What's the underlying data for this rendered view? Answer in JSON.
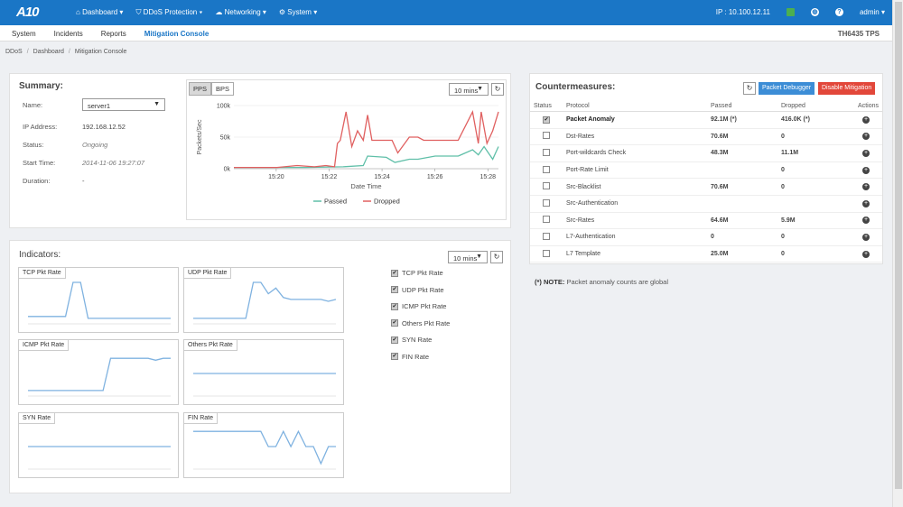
{
  "topbar": {
    "logo": "A10",
    "nav": [
      "Dashboard ▾",
      "DDoS Protection ▾",
      "Networking ▾",
      "System ▾"
    ],
    "nav_icons": [
      "home-icon",
      "shield-icon",
      "cloud-icon",
      "gear-icon"
    ],
    "ip": "IP : 10.100.12.11",
    "user": "admin ▾"
  },
  "subnav": {
    "items": [
      "System",
      "Incidents",
      "Reports",
      "Mitigation Console"
    ],
    "active_index": 3,
    "model": "TH6435 TPS"
  },
  "breadcrumb": [
    "DDoS",
    "Dashboard",
    "Mitigation Console"
  ],
  "summary": {
    "title": "Summary:",
    "name_label": "Name:",
    "name_value": "server1",
    "ip_label": "IP Address:",
    "ip_value": "192.168.12.52",
    "status_label": "Status:",
    "status_value": "Ongoing",
    "start_label": "Start Time:",
    "start_value": "2014-11-06 19:27:07",
    "duration_label": "Duration:",
    "duration_value": "-",
    "toggle": [
      "PPS",
      "BPS"
    ],
    "range": "10 mins"
  },
  "chart_data": {
    "type": "line",
    "ylabel": "Packets/Sec",
    "xlabel": "Date Time",
    "x_ticks": [
      "15:20",
      "15:22",
      "15:24",
      "15:26",
      "15:28"
    ],
    "y_ticks": [
      "0k",
      "50k",
      "100k"
    ],
    "ylim": [
      0,
      100
    ],
    "xlim": [
      0,
      9.2
    ],
    "legend_placement": "bottom",
    "series": [
      {
        "name": "Passed",
        "color": "#5fbfa8",
        "x": [
          0,
          2.5,
          3.8,
          4.5,
          4.65,
          5.3,
          5.6,
          6.1,
          6.4,
          7.0,
          7.2,
          7.8,
          8.3,
          8.5,
          8.7,
          9.0,
          9.2
        ],
        "values": [
          2,
          2,
          3,
          5,
          20,
          18,
          10,
          15,
          15,
          20,
          20,
          20,
          30,
          22,
          35,
          15,
          35
        ]
      },
      {
        "name": "Dropped",
        "color": "#e06060",
        "x": [
          0,
          1.5,
          2.2,
          2.8,
          3.2,
          3.5,
          3.6,
          3.7,
          3.9,
          4.1,
          4.3,
          4.5,
          4.65,
          4.8,
          5.0,
          5.5,
          5.7,
          6.1,
          6.4,
          6.6,
          7.0,
          7.8,
          8.3,
          8.5,
          8.6,
          8.8,
          9.0,
          9.2
        ],
        "values": [
          2,
          2,
          5,
          3,
          5,
          3,
          40,
          45,
          90,
          35,
          60,
          45,
          85,
          45,
          45,
          45,
          25,
          50,
          50,
          45,
          45,
          45,
          90,
          40,
          90,
          40,
          60,
          90
        ]
      }
    ]
  },
  "indicators": {
    "title": "Indicators:",
    "range": "10 mins",
    "charts": [
      {
        "label": "TCP Pkt Rate",
        "values": [
          0.1,
          0.1,
          0.1,
          0.1,
          0.1,
          0.1,
          1.0,
          1.0,
          0.05,
          0.05,
          0.05,
          0.05,
          0.05,
          0.05,
          0.05,
          0.05,
          0.05,
          0.05,
          0.05,
          0.05
        ]
      },
      {
        "label": "UDP Pkt Rate",
        "values": [
          0.05,
          0.05,
          0.05,
          0.05,
          0.05,
          0.05,
          0.05,
          0.05,
          1.0,
          1.0,
          0.7,
          0.85,
          0.6,
          0.55,
          0.55,
          0.55,
          0.55,
          0.55,
          0.5,
          0.55
        ]
      },
      {
        "label": "ICMP Pkt Rate",
        "values": [
          0.05,
          0.05,
          0.05,
          0.05,
          0.05,
          0.05,
          0.05,
          0.05,
          0.05,
          0.05,
          0.05,
          0.9,
          0.9,
          0.9,
          0.9,
          0.9,
          0.9,
          0.85,
          0.9,
          0.9
        ]
      },
      {
        "label": "Others Pkt Rate",
        "values": [
          0.5,
          0.5,
          0.5,
          0.5,
          0.5,
          0.5,
          0.5,
          0.5,
          0.5,
          0.5,
          0.5,
          0.5,
          0.5,
          0.5,
          0.5,
          0.5,
          0.5,
          0.5,
          0.5,
          0.5
        ]
      },
      {
        "label": "SYN Rate",
        "values": [
          0.5,
          0.5,
          0.5,
          0.5,
          0.5,
          0.5,
          0.5,
          0.5,
          0.5,
          0.5,
          0.5,
          0.5,
          0.5,
          0.5,
          0.5,
          0.5,
          0.5,
          0.5,
          0.5,
          0.5
        ]
      },
      {
        "label": "FIN Rate",
        "values": [
          0.9,
          0.9,
          0.9,
          0.9,
          0.9,
          0.9,
          0.9,
          0.9,
          0.9,
          0.9,
          0.5,
          0.5,
          0.9,
          0.5,
          0.9,
          0.5,
          0.5,
          0.05,
          0.5,
          0.5
        ]
      }
    ],
    "checks": [
      "TCP Pkt Rate",
      "UDP Pkt Rate",
      "ICMP Pkt Rate",
      "Others Pkt Rate",
      "SYN Rate",
      "FIN Rate"
    ]
  },
  "countermeasures": {
    "title": "Countermeasures:",
    "debugger_label": "Packet Debugger",
    "disable_label": "Disable Mitigation",
    "headers": [
      "Status",
      "Protocol",
      "Passed",
      "Dropped",
      "Actions"
    ],
    "rows": [
      {
        "checked": true,
        "protocol": "Packet Anomaly",
        "passed": "92.1M (*)",
        "dropped": "416.0K (*)"
      },
      {
        "checked": false,
        "protocol": "Dst-Rates",
        "passed": "70.6M",
        "dropped": "0"
      },
      {
        "checked": false,
        "protocol": "Port-wildcards Check",
        "passed": "48.3M",
        "dropped": "11.1M"
      },
      {
        "checked": false,
        "protocol": "Port-Rate Limit",
        "passed": "",
        "dropped": "0"
      },
      {
        "checked": false,
        "protocol": "Src-Blacklist",
        "passed": "70.6M",
        "dropped": "0"
      },
      {
        "checked": false,
        "protocol": "Src-Authentication",
        "passed": "",
        "dropped": ""
      },
      {
        "checked": false,
        "protocol": "Src-Rates",
        "passed": "64.6M",
        "dropped": "5.9M"
      },
      {
        "checked": false,
        "protocol": "L7-Authentication",
        "passed": "0",
        "dropped": "0"
      },
      {
        "checked": false,
        "protocol": "L7 Template",
        "passed": "25.0M",
        "dropped": "0"
      }
    ],
    "note_bold": "(*) NOTE:",
    "note_text": "Packet anomaly counts are global"
  }
}
